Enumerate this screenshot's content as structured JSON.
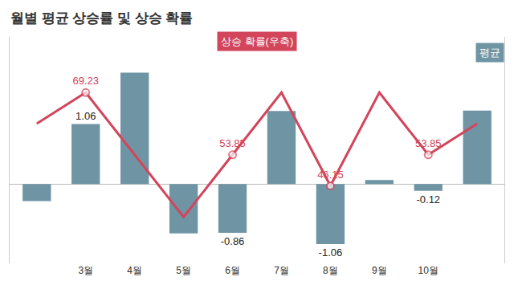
{
  "chart_data": {
    "type": "bar",
    "title": "월별 평균 상승률 및 상승 확률",
    "categories": [
      null,
      "3월",
      "4월",
      "5월",
      "6월",
      "7월",
      "8월",
      "9월",
      "10월",
      null
    ],
    "series": [
      {
        "name": "평균",
        "type": "bar",
        "color": "#6f95a5",
        "values": [
          -0.3,
          1.06,
          1.97,
          -0.87,
          -0.86,
          1.29,
          -1.06,
          0.07,
          -0.12,
          1.3
        ],
        "value_labels": [
          null,
          "1.06",
          null,
          null,
          "-0.86",
          null,
          "-1.06",
          null,
          "-0.12",
          null
        ],
        "data_labels": true
      },
      {
        "name": "상승 확률(우축)",
        "type": "line",
        "axis": "y2",
        "color": "#d2455a",
        "marker": "circle",
        "values": [
          61.54,
          69.23,
          53.85,
          38.46,
          53.85,
          69.23,
          46.15,
          69.23,
          53.85,
          61.54
        ],
        "value_labels": [
          null,
          "69.23",
          null,
          null,
          "53.85",
          null,
          "46.15",
          null,
          "53.85",
          null
        ],
        "data_labels": true
      }
    ],
    "ylim": [
      -1.4,
      2.6
    ],
    "y2lim": [
      27,
      83
    ],
    "tick_labels": "x",
    "grid": false
  }
}
